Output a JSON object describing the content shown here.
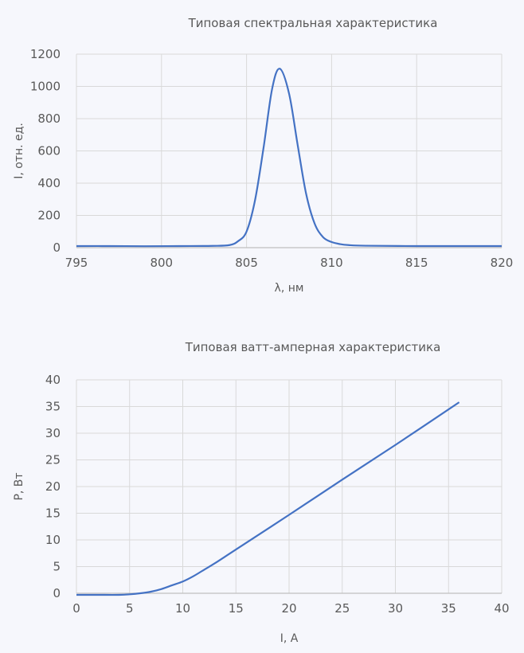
{
  "chart_data": [
    {
      "type": "line",
      "title": "Типовая спектральная характеристика",
      "xlabel": "λ, нм",
      "ylabel": "I, отн. ед.",
      "xlim": [
        795,
        820
      ],
      "ylim": [
        0,
        1200
      ],
      "xticks": [
        795,
        800,
        805,
        810,
        815,
        820
      ],
      "yticks": [
        0,
        200,
        400,
        600,
        800,
        1000,
        1200
      ],
      "grid": true,
      "color": "#4472c4",
      "x": [
        795,
        797,
        799,
        801,
        803,
        804,
        804.5,
        805,
        805.5,
        806,
        806.5,
        806.95,
        807.5,
        808,
        808.5,
        809,
        809.5,
        810,
        810.5,
        811,
        812,
        815,
        818,
        820
      ],
      "y": [
        10,
        10,
        9,
        10,
        11,
        16,
        40,
        100,
        295,
        620,
        983,
        1110,
        955,
        640,
        335,
        150,
        65,
        35,
        22,
        16,
        12,
        10,
        10,
        10
      ]
    },
    {
      "type": "line",
      "title": "Типовая ватт-амперная характеристика",
      "xlabel": "I, А",
      "ylabel": "P, Вт",
      "xlim": [
        0,
        40
      ],
      "ylim": [
        0,
        40
      ],
      "xticks": [
        0,
        5,
        10,
        15,
        20,
        25,
        30,
        35,
        40
      ],
      "yticks": [
        0,
        5,
        10,
        15,
        20,
        25,
        30,
        35,
        40
      ],
      "grid": true,
      "color": "#4472c4",
      "x": [
        0,
        2,
        4,
        5,
        6,
        7,
        8,
        9,
        10,
        11,
        12,
        13,
        15,
        20,
        25,
        30,
        36
      ],
      "y": [
        -0.3,
        -0.3,
        -0.3,
        -0.2,
        0,
        0.3,
        0.8,
        1.5,
        2.2,
        3.2,
        4.4,
        5.6,
        8.2,
        14.7,
        21.3,
        27.8,
        35.8
      ]
    }
  ]
}
